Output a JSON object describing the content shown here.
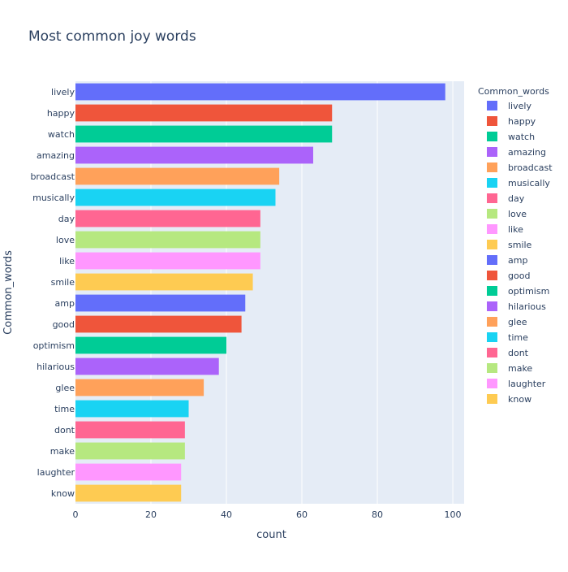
{
  "chart_data": {
    "type": "bar",
    "orientation": "horizontal",
    "title": "Most common joy words",
    "xlabel": "count",
    "ylabel": "Common_words",
    "xlim": [
      0,
      103
    ],
    "x_ticks": [
      0,
      20,
      40,
      60,
      80,
      100
    ],
    "grid": true,
    "legend": {
      "title": "Common_words",
      "placement": "right"
    },
    "categories": [
      "lively",
      "happy",
      "watch",
      "amazing",
      "broadcast",
      "musically",
      "day",
      "love",
      "like",
      "smile",
      "amp",
      "good",
      "optimism",
      "hilarious",
      "glee",
      "time",
      "dont",
      "make",
      "laughter",
      "know"
    ],
    "values": [
      98,
      68,
      68,
      63,
      54,
      53,
      49,
      49,
      49,
      47,
      45,
      44,
      40,
      38,
      34,
      30,
      29,
      29,
      28,
      28
    ],
    "colors": [
      "#636efa",
      "#EF553B",
      "#00cc96",
      "#ab63fa",
      "#FFA15A",
      "#19d3f3",
      "#FF6692",
      "#B6E880",
      "#FF97FF",
      "#FECB52",
      "#636efa",
      "#EF553B",
      "#00cc96",
      "#ab63fa",
      "#FFA15A",
      "#19d3f3",
      "#FF6692",
      "#B6E880",
      "#FF97FF",
      "#FECB52"
    ]
  },
  "style": {
    "plot_background": "#E5ECF6",
    "grid_color": "#ffffff",
    "text_color": "#2a3f5f"
  }
}
